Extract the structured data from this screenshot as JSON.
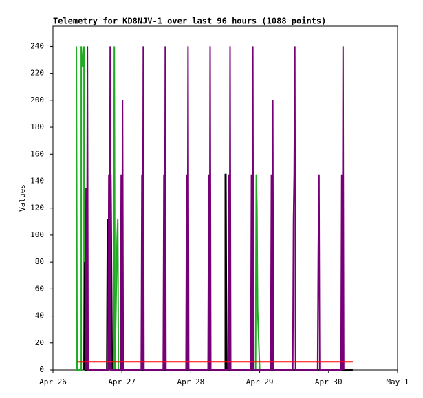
{
  "chart_data": {
    "type": "line",
    "title": "Telemetry for KD8NJV-1 over last 96 hours (1088 points)",
    "ylabel": "Values",
    "ylim": [
      0,
      255
    ],
    "yticks": [
      0,
      20,
      40,
      60,
      80,
      100,
      120,
      140,
      160,
      180,
      200,
      220,
      240
    ],
    "xlim": [
      0,
      5
    ],
    "xticks": [
      {
        "value": 0,
        "label": "Apr 26"
      },
      {
        "value": 1,
        "label": "Apr 27"
      },
      {
        "value": 2,
        "label": "Apr 28"
      },
      {
        "value": 3,
        "label": "Apr 29"
      },
      {
        "value": 4,
        "label": "Apr 30"
      },
      {
        "value": 5,
        "label": "May 1"
      }
    ],
    "series": [
      {
        "color": "#22aa22",
        "x": [
          0.34,
          0.34,
          0.35,
          0.41,
          0.41,
          0.43,
          0.45,
          0.45,
          0.46,
          0.88,
          0.89,
          0.9,
          0.93,
          0.94,
          0.95,
          2.94,
          2.95,
          2.96,
          2.97,
          3.0
        ],
        "values": [
          0,
          240,
          0,
          0,
          240,
          225,
          240,
          0,
          0,
          0,
          240,
          0,
          97,
          112,
          0,
          0,
          145,
          120,
          45,
          0
        ]
      },
      {
        "color": "#000000",
        "x": [
          0.45,
          0.46,
          0.47,
          0.78,
          0.79,
          0.82,
          0.84,
          0.86,
          2.5,
          2.5,
          2.51,
          2.52,
          4.35
        ],
        "values": [
          0,
          80,
          0,
          0,
          112,
          0,
          145,
          0,
          0,
          145,
          145,
          0,
          0
        ]
      },
      {
        "color": "#770077",
        "x": [
          0.47,
          0.48,
          0.49,
          0.5,
          0.51,
          0.8,
          0.81,
          0.82,
          0.83,
          0.84,
          0.98,
          0.99,
          1.0,
          1.01,
          1.02,
          1.28,
          1.29,
          1.3,
          1.31,
          1.32,
          1.6,
          1.61,
          1.62,
          1.63,
          1.64,
          1.93,
          1.94,
          1.95,
          1.96,
          1.97,
          2.25,
          2.26,
          2.27,
          2.28,
          2.29,
          2.54,
          2.55,
          2.56,
          2.57,
          2.58,
          2.87,
          2.88,
          2.89,
          2.9,
          2.91,
          3.16,
          3.17,
          3.18,
          3.19,
          3.2,
          3.48,
          3.49,
          3.5,
          3.51,
          3.52,
          3.84,
          3.85,
          3.86,
          3.87,
          3.88,
          4.18,
          4.19,
          4.2,
          4.21,
          4.22
        ],
        "values": [
          0,
          135,
          0,
          240,
          0,
          0,
          145,
          0,
          240,
          0,
          0,
          145,
          0,
          200,
          0,
          0,
          145,
          0,
          240,
          0,
          0,
          145,
          0,
          240,
          0,
          0,
          145,
          0,
          240,
          0,
          0,
          145,
          0,
          240,
          0,
          0,
          145,
          0,
          240,
          0,
          0,
          145,
          0,
          240,
          0,
          0,
          145,
          0,
          200,
          0,
          0,
          110,
          145,
          240,
          0,
          0,
          90,
          145,
          0,
          0,
          0,
          145,
          0,
          240,
          0
        ]
      },
      {
        "color": "#ff0000",
        "x": [
          0.35,
          4.35
        ],
        "values": [
          6,
          6
        ]
      }
    ]
  }
}
